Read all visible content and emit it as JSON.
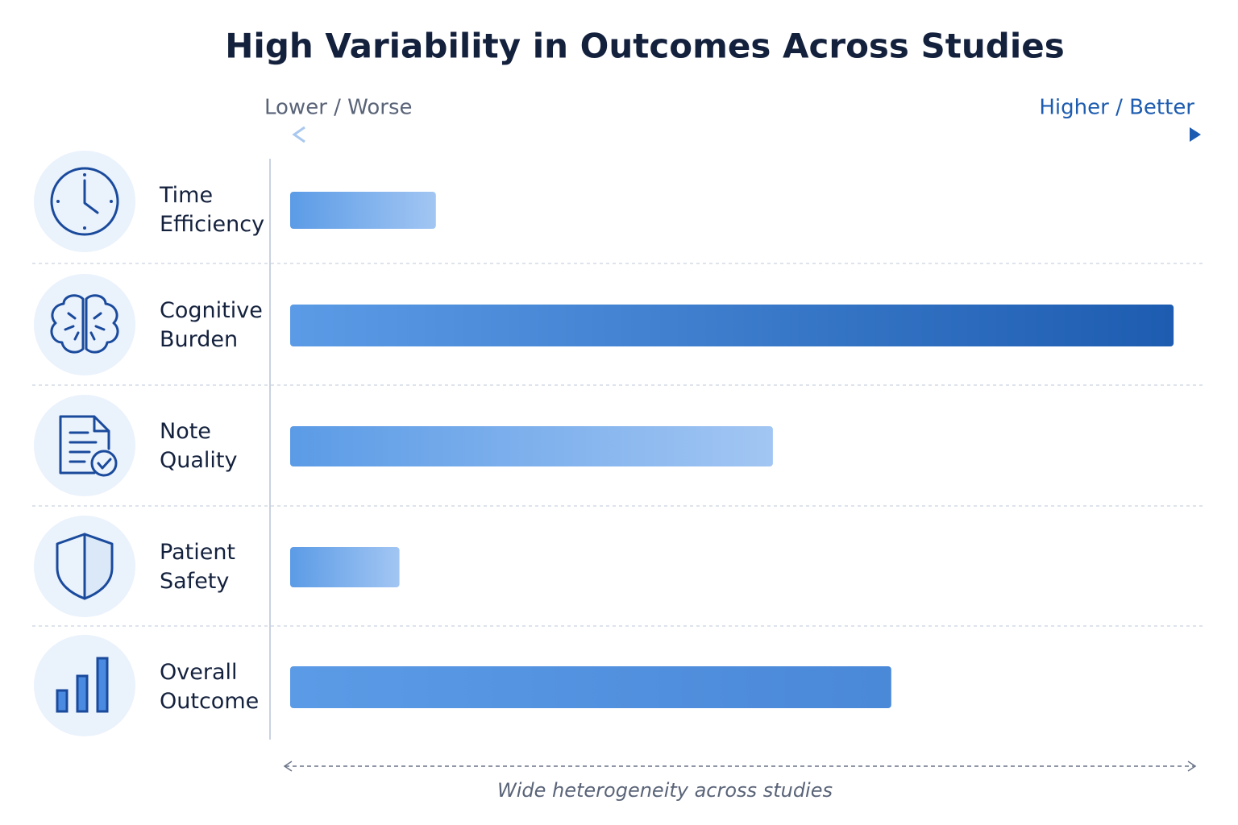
{
  "chart_data": {
    "type": "hbar",
    "title": "High Variability in Outcomes Across Studies",
    "x_low_label": "Lower / Worse",
    "x_high_label": "Higher / Better",
    "annotation": "Wide heterogeneity across studies",
    "categories": [
      "Time Efficiency",
      "Cognitive Burden",
      "Note Quality",
      "Patient Safety",
      "Overall Outcome"
    ],
    "values": [
      16,
      97,
      53,
      12,
      66
    ],
    "xlim": [
      0,
      100
    ],
    "color": "#5b9be6"
  }
}
